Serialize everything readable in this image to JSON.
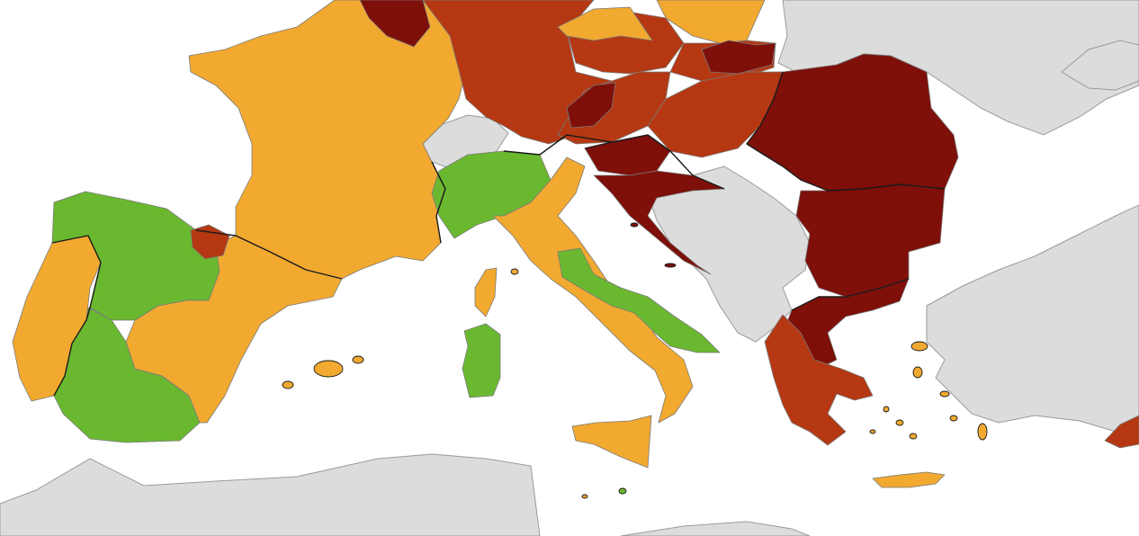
{
  "map": {
    "colors": {
      "sea": "#ffffff",
      "non_eu": "#dcdcdc",
      "green": "#6ab82f",
      "orange": "#f2a930",
      "red": "#b53812",
      "dark_red": "#7e0f09",
      "borders": "#1a1a1a"
    },
    "countries": [
      {
        "name": "portugal",
        "level": "orange"
      },
      {
        "name": "spain",
        "level": "mixed-green-orange"
      },
      {
        "name": "france",
        "level": "orange"
      },
      {
        "name": "italy",
        "level": "mixed-green-orange"
      },
      {
        "name": "croatia",
        "level": "dark_red"
      },
      {
        "name": "slovenia",
        "level": "dark_red"
      },
      {
        "name": "austria",
        "level": "mixed-red-dark_red"
      },
      {
        "name": "hungary",
        "level": "red"
      },
      {
        "name": "romania",
        "level": "dark_red"
      },
      {
        "name": "bulgaria",
        "level": "dark_red"
      },
      {
        "name": "greece",
        "level": "mixed-red-dark_red"
      },
      {
        "name": "germany",
        "level": "red"
      },
      {
        "name": "czechia",
        "level": "mixed-orange-red"
      },
      {
        "name": "slovakia",
        "level": "mixed-red-dark_red"
      },
      {
        "name": "cyprus",
        "level": "red"
      }
    ]
  }
}
